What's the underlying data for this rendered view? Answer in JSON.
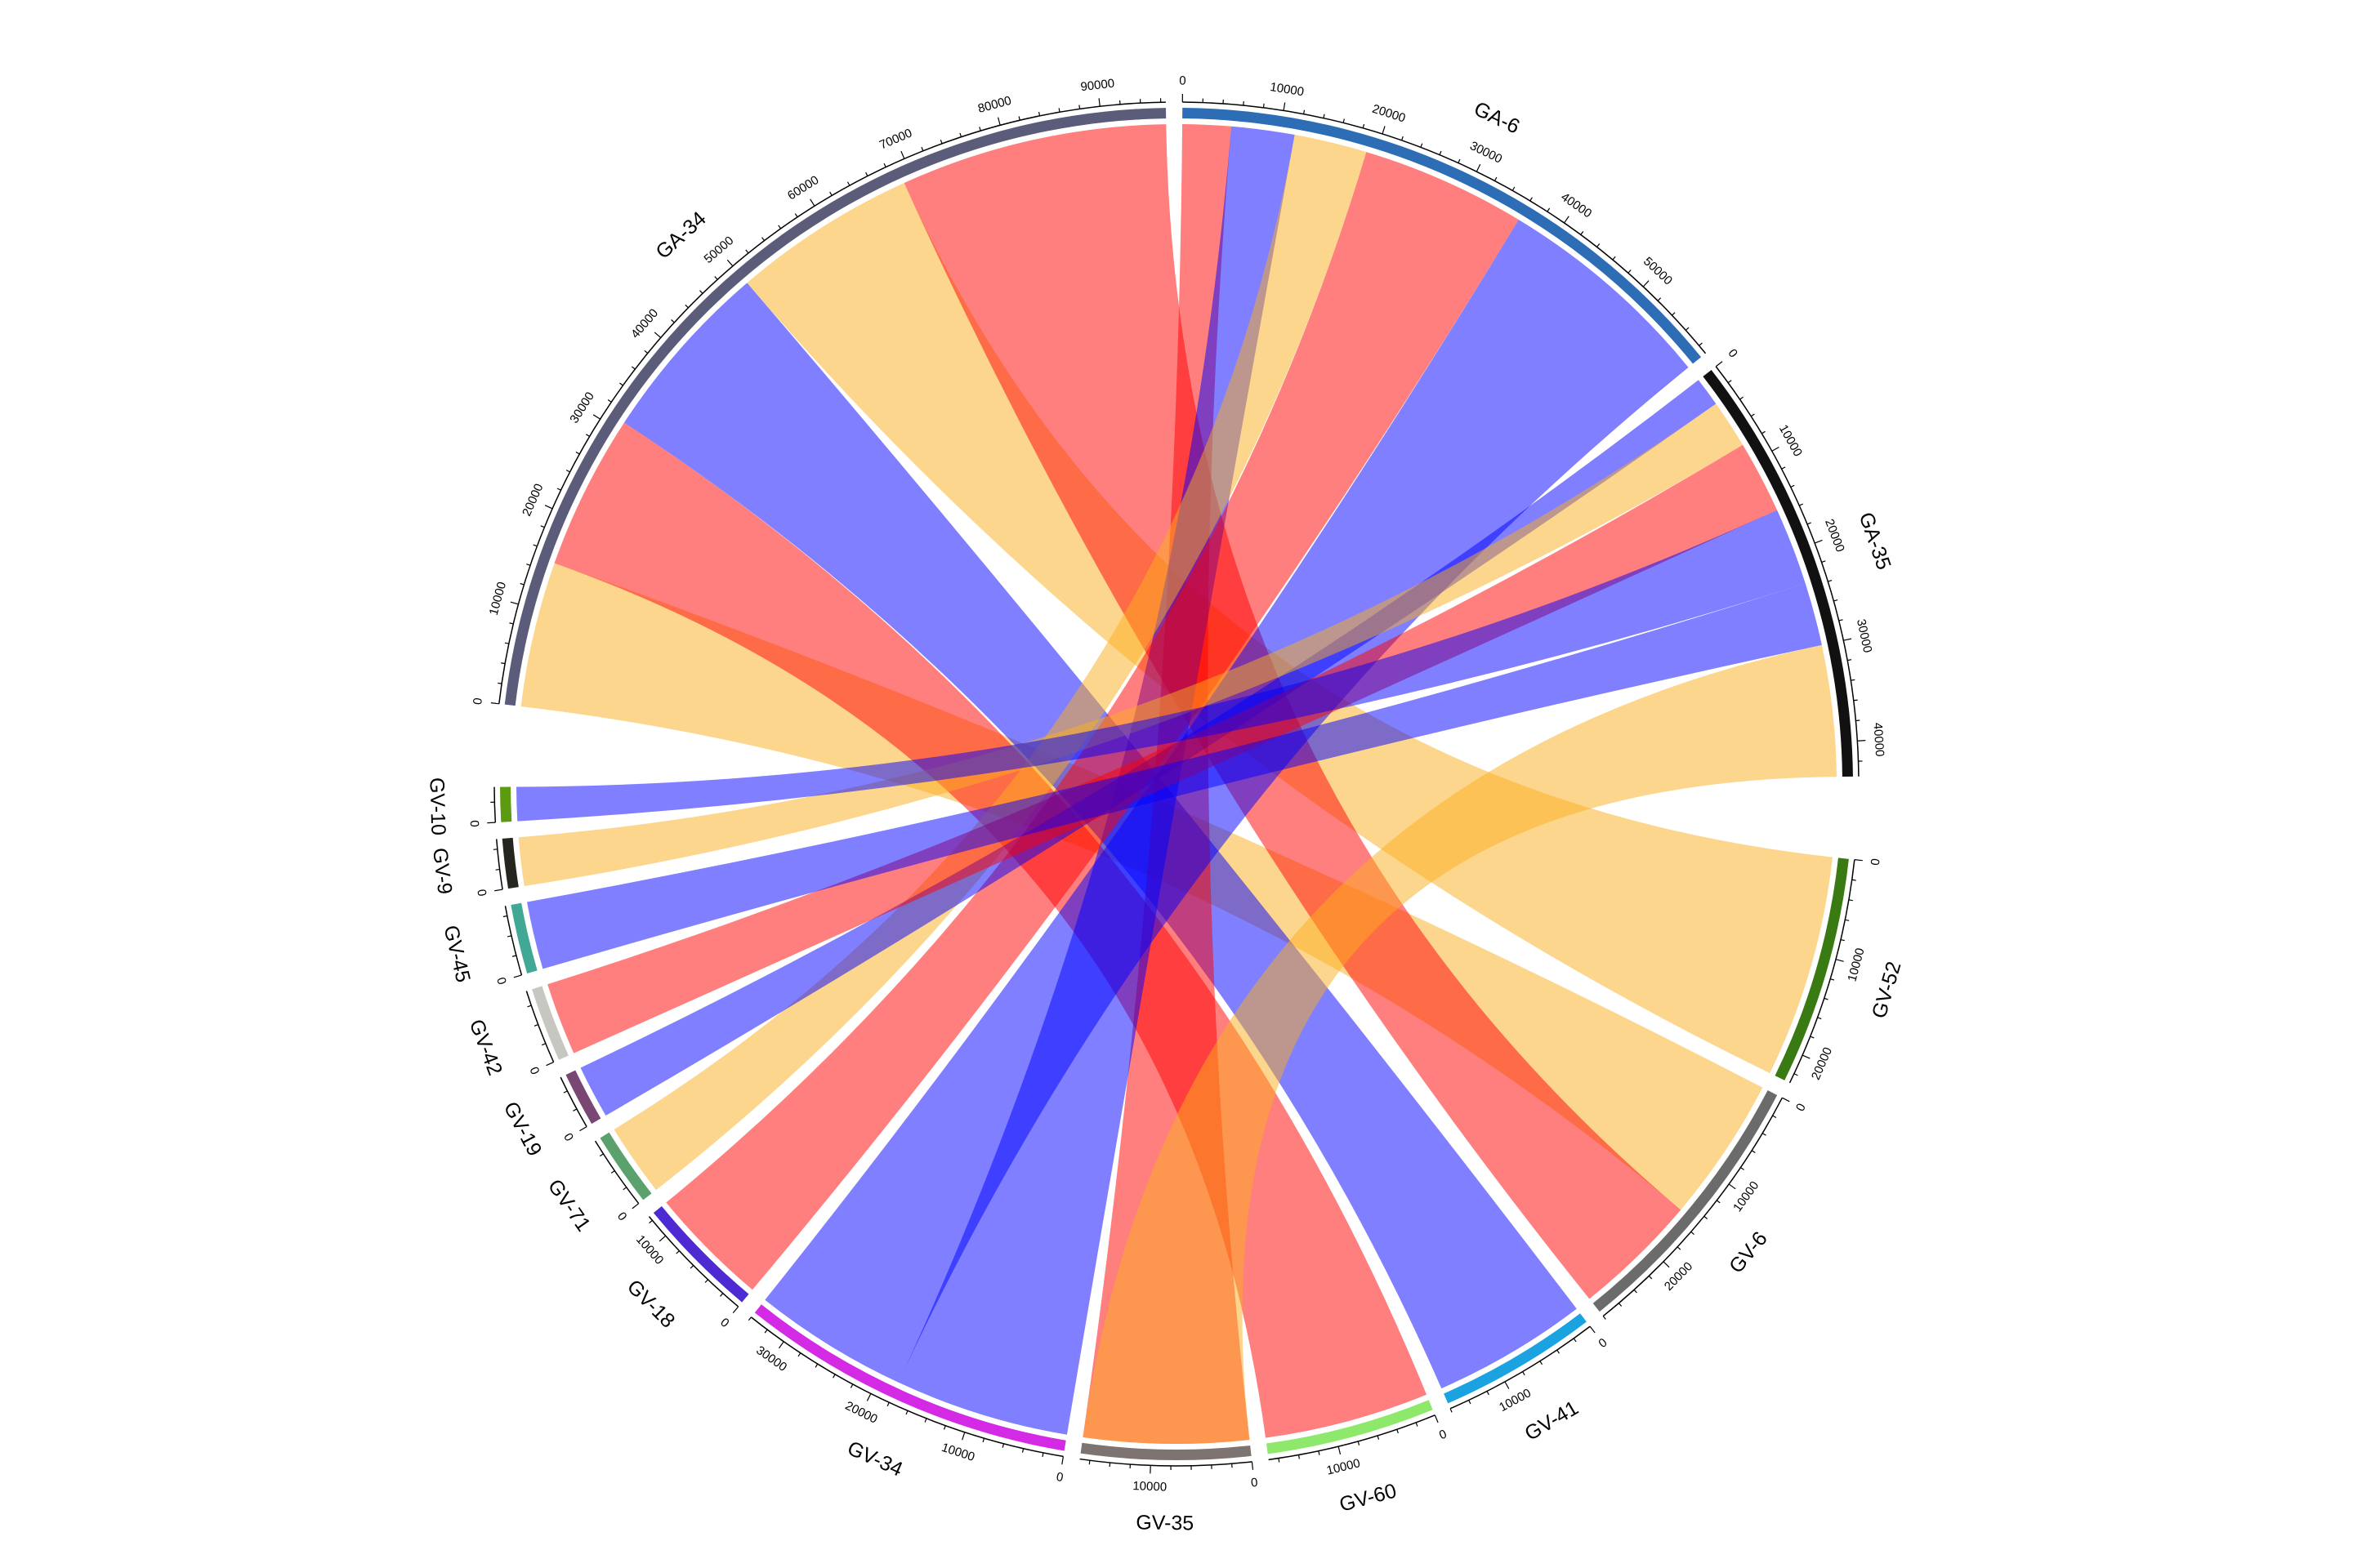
{
  "chart_data": {
    "type": "chord",
    "title": "",
    "link_colors": {
      "red": "#ff0000",
      "blue": "#0000ff",
      "orange": "#fbad1d"
    },
    "sectors": [
      {
        "name": "GA-6",
        "color": "#2d6db5",
        "length": 59000,
        "ticks": [
          0,
          10000,
          20000,
          30000,
          40000,
          50000
        ]
      },
      {
        "name": "GA-35",
        "color": "#111111",
        "length": 43500,
        "ticks": [
          0,
          10000,
          20000,
          30000,
          40000
        ]
      },
      {
        "name": "GV-52",
        "color": "#3a7a12",
        "length": 23000,
        "ticks": [
          0,
          10000,
          20000
        ]
      },
      {
        "name": "GV-6",
        "color": "#6b6b6b",
        "length": 28000,
        "ticks": [
          0,
          10000,
          20000
        ]
      },
      {
        "name": "GV-41",
        "color": "#1aa3e0",
        "length": 16000,
        "ticks": [
          0,
          10000
        ]
      },
      {
        "name": "GV-60",
        "color": "#8de86b",
        "length": 17000,
        "ticks": [
          0,
          10000
        ]
      },
      {
        "name": "GV-35",
        "color": "#7d7370",
        "length": 17000,
        "ticks": [
          0,
          10000
        ]
      },
      {
        "name": "GV-34",
        "color": "#d42ae6",
        "length": 34000,
        "ticks": [
          0,
          10000,
          20000,
          30000
        ]
      },
      {
        "name": "GV-18",
        "color": "#4d2ad1",
        "length": 12500,
        "ticks": [
          0,
          10000
        ]
      },
      {
        "name": "GV-71",
        "color": "#5aa16e",
        "length": 7500,
        "ticks": [
          0
        ]
      },
      {
        "name": "GV-19",
        "color": "#7a4673",
        "length": 5500,
        "ticks": [
          0
        ]
      },
      {
        "name": "GV-42",
        "color": "#c7c7c2",
        "length": 7500,
        "ticks": [
          0
        ]
      },
      {
        "name": "GV-45",
        "color": "#42a896",
        "length": 7000,
        "ticks": [
          0
        ]
      },
      {
        "name": "GV-9",
        "color": "#262620",
        "length": 5000,
        "ticks": [
          0
        ]
      },
      {
        "name": "GV-10",
        "color": "#5c9a12",
        "length": 3500,
        "ticks": [
          0
        ]
      },
      {
        "name": "GA-34",
        "color": "#5b5c7a",
        "length": 96500,
        "ticks": [
          0,
          10000,
          20000,
          30000,
          40000,
          50000,
          60000,
          70000,
          80000,
          90000
        ]
      }
    ],
    "links": [
      {
        "source": "GA-34",
        "source_range": [
          0,
          15000
        ],
        "target": "GV-6",
        "target_range": [
          0,
          15000
        ],
        "color": "orange"
      },
      {
        "source": "GA-34",
        "source_range": [
          15000,
          31000
        ],
        "target": "GV-60",
        "target_range": [
          0,
          17000
        ],
        "color": "red"
      },
      {
        "source": "GA-34",
        "source_range": [
          31000,
          50000
        ],
        "target": "GV-41",
        "target_range": [
          0,
          16000
        ],
        "color": "blue"
      },
      {
        "source": "GA-34",
        "source_range": [
          50000,
          69000
        ],
        "target": "GV-52",
        "target_range": [
          0,
          23000
        ],
        "color": "orange"
      },
      {
        "source": "GA-34",
        "source_range": [
          69000,
          96500
        ],
        "target": "GV-6",
        "target_range": [
          15000,
          28000
        ],
        "color": "red"
      },
      {
        "source": "GA-6",
        "source_range": [
          0,
          5000
        ],
        "target": "GV-35",
        "target_range": [
          0,
          17000
        ],
        "color": "red"
      },
      {
        "source": "GA-6",
        "source_range": [
          5000,
          11500
        ],
        "target": "GV-34",
        "target_range": [
          0,
          18000
        ],
        "color": "blue"
      },
      {
        "source": "GA-6",
        "source_range": [
          11500,
          19000
        ],
        "target": "GV-71",
        "target_range": [
          0,
          7500
        ],
        "color": "orange"
      },
      {
        "source": "GA-6",
        "source_range": [
          19000,
          36000
        ],
        "target": "GV-18",
        "target_range": [
          0,
          12500
        ],
        "color": "red"
      },
      {
        "source": "GA-6",
        "source_range": [
          36000,
          59000
        ],
        "target": "GV-34",
        "target_range": [
          18000,
          34000
        ],
        "color": "blue"
      },
      {
        "source": "GA-35",
        "source_range": [
          0,
          3000
        ],
        "target": "GV-19",
        "target_range": [
          0,
          5500
        ],
        "color": "blue"
      },
      {
        "source": "GA-35",
        "source_range": [
          3000,
          8000
        ],
        "target": "GV-9",
        "target_range": [
          0,
          5000
        ],
        "color": "orange"
      },
      {
        "source": "GA-35",
        "source_range": [
          8000,
          15500
        ],
        "target": "GV-42",
        "target_range": [
          0,
          7500
        ],
        "color": "red"
      },
      {
        "source": "GA-35",
        "source_range": [
          15500,
          23500
        ],
        "target": "GV-10",
        "target_range": [
          0,
          3500
        ],
        "color": "blue"
      },
      {
        "source": "GA-35",
        "source_range": [
          23500,
          30000
        ],
        "target": "GV-45",
        "target_range": [
          0,
          7000
        ],
        "color": "blue"
      },
      {
        "source": "GA-35",
        "source_range": [
          30000,
          43500
        ],
        "target": "GV-35",
        "target_range": [
          0,
          17000
        ],
        "color": "orange"
      }
    ]
  }
}
